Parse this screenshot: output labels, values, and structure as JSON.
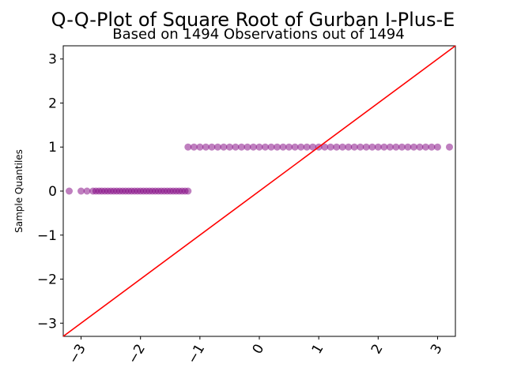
{
  "chart_data": {
    "type": "scatter",
    "title": "Q-Q-Plot of Square Root of Gurban I-Plus-E",
    "subtitle": "Based on 1494 Observations out of 1494",
    "xlabel": "",
    "ylabel": "Sample Quantiles",
    "xlim": [
      -3.3,
      3.3
    ],
    "ylim": [
      -3.3,
      3.3
    ],
    "x_ticks": [
      "−3",
      "−2",
      "−1",
      "0",
      "1",
      "2",
      "3"
    ],
    "y_ticks": [
      "3",
      "2",
      "1",
      "0",
      "−1",
      "−2",
      "−3"
    ],
    "grid": false,
    "series": [
      {
        "x": [
          -3.2,
          -3.0,
          -2.9,
          -2.8,
          -2.75,
          -2.7,
          -2.65,
          -2.6,
          -2.55,
          -2.5,
          -2.45,
          -2.4,
          -2.35,
          -2.3,
          -2.25,
          -2.2,
          -2.15,
          -2.1,
          -2.05,
          -2.0,
          -1.95,
          -1.9,
          -1.85,
          -1.8,
          -1.75,
          -1.7,
          -1.65,
          -1.6,
          -1.55,
          -1.5,
          -1.45,
          -1.4,
          -1.35,
          -1.3,
          -1.25,
          -1.2,
          -1.2,
          -1.1,
          -1.0,
          -0.9,
          -0.8,
          -0.7,
          -0.6,
          -0.5,
          -0.4,
          -0.3,
          -0.2,
          -0.1,
          0.0,
          0.1,
          0.2,
          0.3,
          0.4,
          0.5,
          0.6,
          0.7,
          0.8,
          0.9,
          1.0,
          1.1,
          1.2,
          1.3,
          1.4,
          1.5,
          1.6,
          1.7,
          1.8,
          1.9,
          2.0,
          2.1,
          2.2,
          2.3,
          2.4,
          2.5,
          2.6,
          2.7,
          2.8,
          2.9,
          3.0,
          3.2
        ],
        "y": [
          0,
          0,
          0,
          0,
          0,
          0,
          0,
          0,
          0,
          0,
          0,
          0,
          0,
          0,
          0,
          0,
          0,
          0,
          0,
          0,
          0,
          0,
          0,
          0,
          0,
          0,
          0,
          0,
          0,
          0,
          0,
          0,
          0,
          0,
          0,
          0,
          1,
          1,
          1,
          1,
          1,
          1,
          1,
          1,
          1,
          1,
          1,
          1,
          1,
          1,
          1,
          1,
          1,
          1,
          1,
          1,
          1,
          1,
          1,
          1,
          1,
          1,
          1,
          1,
          1,
          1,
          1,
          1,
          1,
          1,
          1,
          1,
          1,
          1,
          1,
          1,
          1,
          1,
          1,
          1
        ]
      }
    ],
    "reference_line": {
      "slope": 1,
      "intercept": 0
    },
    "colors": {
      "points": "#800080",
      "line": "#ff0000"
    }
  }
}
